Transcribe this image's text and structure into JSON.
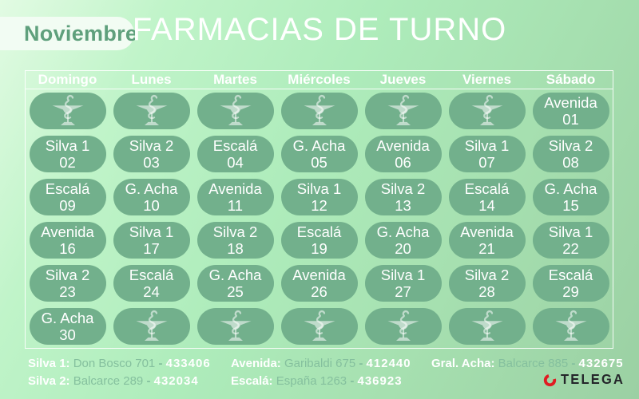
{
  "header": {
    "month": "Noviembre",
    "title": "FARMACIAS DE TURNO"
  },
  "calendar": {
    "day_headers": [
      "Domingo",
      "Lunes",
      "Martes",
      "Miércoles",
      "Jueves",
      "Viernes",
      "Sábado"
    ],
    "weeks": [
      [
        null,
        null,
        null,
        null,
        null,
        null,
        {
          "name": "Avenida",
          "day": "01"
        }
      ],
      [
        {
          "name": "Silva 1",
          "day": "02"
        },
        {
          "name": "Silva 2",
          "day": "03"
        },
        {
          "name": "Escalá",
          "day": "04"
        },
        {
          "name": "G. Acha",
          "day": "05"
        },
        {
          "name": "Avenida",
          "day": "06"
        },
        {
          "name": "Silva 1",
          "day": "07"
        },
        {
          "name": "Silva 2",
          "day": "08"
        }
      ],
      [
        {
          "name": "Escalá",
          "day": "09"
        },
        {
          "name": "G. Acha",
          "day": "10"
        },
        {
          "name": "Avenida",
          "day": "11"
        },
        {
          "name": "Silva 1",
          "day": "12"
        },
        {
          "name": "Silva 2",
          "day": "13"
        },
        {
          "name": "Escalá",
          "day": "14"
        },
        {
          "name": "G. Acha",
          "day": "15"
        }
      ],
      [
        {
          "name": "Avenida",
          "day": "16"
        },
        {
          "name": "Silva 1",
          "day": "17"
        },
        {
          "name": "Silva 2",
          "day": "18"
        },
        {
          "name": "Escalá",
          "day": "19"
        },
        {
          "name": "G. Acha",
          "day": "20"
        },
        {
          "name": "Avenida",
          "day": "21"
        },
        {
          "name": "Silva 1",
          "day": "22"
        }
      ],
      [
        {
          "name": "Silva 2",
          "day": "23"
        },
        {
          "name": "Escalá",
          "day": "24"
        },
        {
          "name": "G. Acha",
          "day": "25"
        },
        {
          "name": "Avenida",
          "day": "26"
        },
        {
          "name": "Silva 1",
          "day": "27"
        },
        {
          "name": "Silva 2",
          "day": "28"
        },
        {
          "name": "Escalá",
          "day": "29"
        }
      ],
      [
        {
          "name": "G. Acha",
          "day": "30"
        },
        null,
        null,
        null,
        null,
        null,
        null
      ]
    ],
    "empty_cell_icon": "hygieia-cup-icon"
  },
  "directory": {
    "separator": "-",
    "items": [
      {
        "label": "Silva 1:",
        "address": "Don Bosco 701",
        "phone": "433406"
      },
      {
        "label": "Silva 2:",
        "address": "Balcarce 289",
        "phone": "432034"
      },
      {
        "label": "Avenida:",
        "address": "Garibaldi 675",
        "phone": "412440"
      },
      {
        "label": "Escalá:",
        "address": "España 1263",
        "phone": "436923"
      },
      {
        "label": "Gral. Acha:",
        "address": "Balcarce 885",
        "phone": "432675"
      }
    ]
  },
  "logo": {
    "text": "TELEGA"
  },
  "colors": {
    "pill_green": "#72b08c",
    "background_light": "#e2fbe3",
    "background_dark": "#9bd0a3",
    "month_text": "#5fa07c",
    "address_text": "#85c09e",
    "logo_red": "#e01b22",
    "logo_dark": "#24262a"
  }
}
